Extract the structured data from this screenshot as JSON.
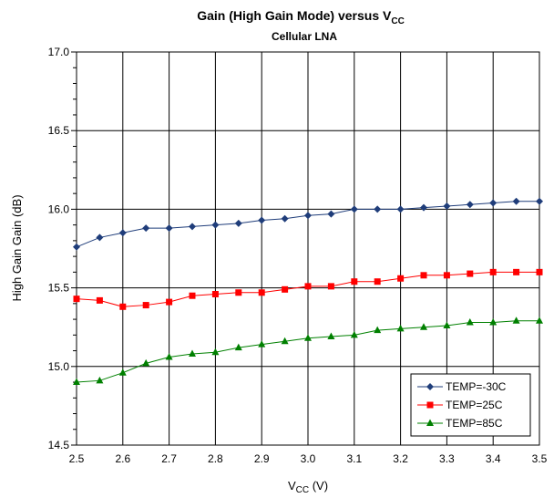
{
  "chart_data": {
    "type": "line",
    "title": {
      "main": "Gain (High Gain Mode) versus V",
      "main_sub": "CC"
    },
    "subtitle": "Cellular LNA",
    "xlabel": {
      "main": "V",
      "sub": "CC",
      "unit": " (V)"
    },
    "ylabel": "High Gain Gain (dB)",
    "xlim": [
      2.5,
      3.5
    ],
    "ylim": [
      14.5,
      17.0
    ],
    "x_ticks": [
      "2.5",
      "2.6",
      "2.7",
      "2.8",
      "2.9",
      "3.0",
      "3.1",
      "3.2",
      "3.3",
      "3.4",
      "3.5"
    ],
    "y_ticks": [
      "14.5",
      "15.0",
      "15.5",
      "16.0",
      "16.5",
      "17.0"
    ],
    "grid": true,
    "legend_position": "bottom-right",
    "x": [
      2.5,
      2.55,
      2.6,
      2.65,
      2.7,
      2.75,
      2.8,
      2.85,
      2.9,
      2.95,
      3.0,
      3.05,
      3.1,
      3.15,
      3.2,
      3.25,
      3.3,
      3.35,
      3.4,
      3.45,
      3.5
    ],
    "series": [
      {
        "name": "TEMP=-30C",
        "color": "#1f3d7a",
        "marker": "diamond",
        "values": [
          15.76,
          15.82,
          15.85,
          15.88,
          15.88,
          15.89,
          15.9,
          15.91,
          15.93,
          15.94,
          15.96,
          15.97,
          16.0,
          16.0,
          16.0,
          16.01,
          16.02,
          16.03,
          16.04,
          16.05,
          16.05
        ]
      },
      {
        "name": "TEMP=25C",
        "color": "#ff0000",
        "marker": "square",
        "values": [
          15.43,
          15.42,
          15.38,
          15.39,
          15.41,
          15.45,
          15.46,
          15.47,
          15.47,
          15.49,
          15.51,
          15.51,
          15.54,
          15.54,
          15.56,
          15.58,
          15.58,
          15.59,
          15.6,
          15.6,
          15.6
        ]
      },
      {
        "name": "TEMP=85C",
        "color": "#008000",
        "marker": "triangle",
        "values": [
          14.9,
          14.91,
          14.96,
          15.02,
          15.06,
          15.08,
          15.09,
          15.12,
          15.14,
          15.16,
          15.18,
          15.19,
          15.2,
          15.23,
          15.24,
          15.25,
          15.26,
          15.28,
          15.28,
          15.29,
          15.29
        ]
      }
    ]
  }
}
